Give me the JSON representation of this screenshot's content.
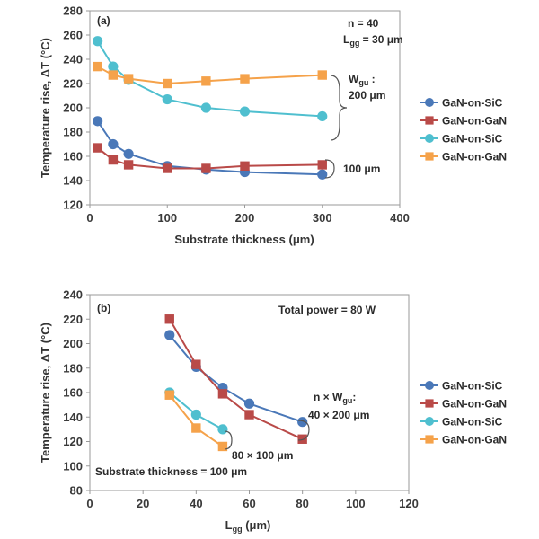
{
  "chart_data": [
    {
      "panel_label": "(a)",
      "type": "line",
      "xlabel": "Substrate thickness (μm)",
      "ylabel": "Temperature rise, ΔT (°C)",
      "xlim": [
        0,
        400
      ],
      "ylim": [
        120,
        280
      ],
      "xticks": [
        0,
        100,
        200,
        300,
        400
      ],
      "yticks": [
        120,
        140,
        160,
        180,
        200,
        220,
        240,
        260,
        280
      ],
      "grid": false,
      "legend_position": "right",
      "annotations": {
        "params_line1": "n = 40",
        "params_line2_main": "L",
        "params_line2_sub": "gg",
        "params_line2_rest": " = 30 μm",
        "group_label_main": "W",
        "group_label_sub": "gu",
        "group_label_rest": " :",
        "group_value_200": "200 μm",
        "group_value_100": "100 μm"
      },
      "series": [
        {
          "name": "GaN-on-SiC",
          "color": "#4a78b8",
          "marker": "circle",
          "x": [
            10,
            30,
            50,
            100,
            150,
            200,
            300
          ],
          "y": [
            189,
            170,
            162,
            152,
            149,
            147,
            145
          ]
        },
        {
          "name": "GaN-on-GaN",
          "color": "#b94a48",
          "marker": "square",
          "x": [
            10,
            30,
            50,
            100,
            150,
            200,
            300
          ],
          "y": [
            167,
            157,
            153,
            150,
            150,
            152,
            153
          ]
        },
        {
          "name": "GaN-on-SiC",
          "color": "#4fbfcf",
          "marker": "circle",
          "x": [
            10,
            30,
            50,
            100,
            150,
            200,
            300
          ],
          "y": [
            255,
            234,
            223,
            207,
            200,
            197,
            193
          ]
        },
        {
          "name": "GaN-on-GaN",
          "color": "#f5a24a",
          "marker": "square",
          "x": [
            10,
            30,
            50,
            100,
            150,
            200,
            300
          ],
          "y": [
            234,
            227,
            224,
            220,
            222,
            224,
            227
          ]
        }
      ]
    },
    {
      "panel_label": "(b)",
      "type": "line",
      "xlabel_main": "L",
      "xlabel_sub": "gg",
      "xlabel_rest": " (μm)",
      "ylabel": "Temperature rise, ΔT (°C)",
      "xlim": [
        0,
        120
      ],
      "ylim": [
        80,
        240
      ],
      "xticks": [
        0,
        20,
        40,
        60,
        80,
        100,
        120
      ],
      "yticks": [
        80,
        100,
        120,
        140,
        160,
        180,
        200,
        220,
        240
      ],
      "grid": false,
      "legend_position": "right",
      "annotations": {
        "total_power": "Total power = 80 W",
        "substrate": "Substrate thickness = 100 μm",
        "group_label_main": "n × W",
        "group_label_sub": "gu",
        "group_label_rest": ":",
        "group_value_40": "40 × 200 μm",
        "group_value_80": "80 × 100 μm"
      },
      "series": [
        {
          "name": "GaN-on-SiC",
          "color": "#4a78b8",
          "marker": "circle",
          "x": [
            30,
            40,
            50,
            60,
            80
          ],
          "y": [
            207,
            181,
            164,
            151,
            136
          ]
        },
        {
          "name": "GaN-on-GaN",
          "color": "#b94a48",
          "marker": "square",
          "x": [
            30,
            40,
            50,
            60,
            80
          ],
          "y": [
            220,
            183,
            159,
            142,
            122
          ]
        },
        {
          "name": "GaN-on-SiC",
          "color": "#4fbfcf",
          "marker": "circle",
          "x": [
            30,
            40,
            50
          ],
          "y": [
            160,
            142,
            130
          ]
        },
        {
          "name": "GaN-on-GaN",
          "color": "#f5a24a",
          "marker": "square",
          "x": [
            30,
            40,
            50
          ],
          "y": [
            158,
            131,
            116
          ]
        }
      ]
    }
  ]
}
